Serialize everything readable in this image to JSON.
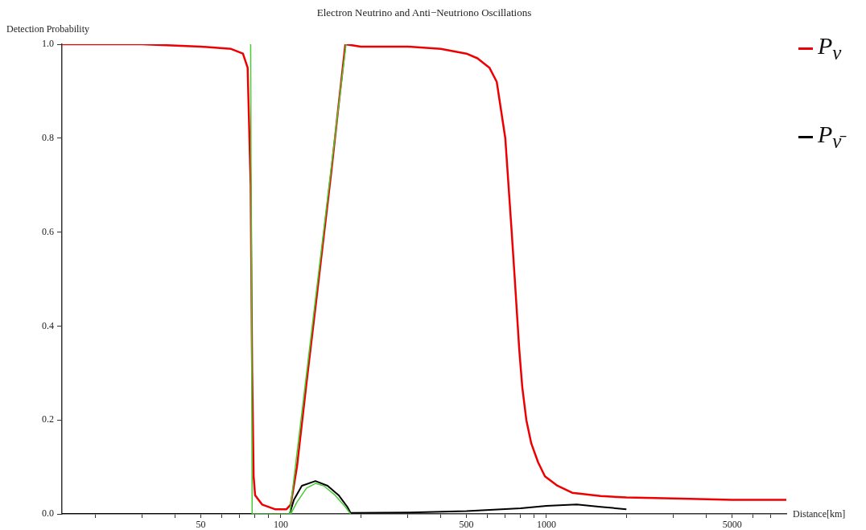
{
  "chart_data": {
    "type": "line",
    "title": "Electron Neutrino and Anti−Neutriono Oscillations",
    "xlabel": "Distance[km]",
    "ylabel": "Detection Probability",
    "log": "x",
    "legend": "right",
    "grid": false,
    "marker": "none",
    "line_style": "solid",
    "xlim": [
      15,
      8000
    ],
    "xticks": [
      {
        "value": 20,
        "label": null
      },
      {
        "value": 30,
        "label": null
      },
      {
        "value": 40,
        "label": null
      },
      50,
      {
        "value": 60,
        "label": null
      },
      {
        "value": 70,
        "label": null
      },
      {
        "value": 80,
        "label": null
      },
      {
        "value": 90,
        "label": null
      },
      100,
      {
        "value": 200,
        "label": null
      },
      {
        "value": 300,
        "label": null
      },
      {
        "value": 400,
        "label": null
      },
      500,
      {
        "value": 600,
        "label": null
      },
      {
        "value": 700,
        "label": null
      },
      {
        "value": 800,
        "label": null
      },
      {
        "value": 900,
        "label": null
      },
      1000,
      {
        "value": 2000,
        "label": null
      },
      {
        "value": 3000,
        "label": null
      },
      {
        "value": 4000,
        "label": null
      },
      5000,
      {
        "value": 6000,
        "label": null
      },
      {
        "value": 7000,
        "label": null
      }
    ],
    "ylim": [
      0,
      1
    ],
    "yticks": [
      {
        "value": 0,
        "label": "0.0"
      },
      {
        "value": 0.2,
        "label": "0.2"
      },
      {
        "value": 0.4,
        "label": "0.4"
      },
      {
        "value": 0.6,
        "label": "0.6"
      },
      {
        "value": 0.8,
        "label": "0.8"
      },
      {
        "value": 1,
        "label": "1.0"
      }
    ],
    "series": [
      {
        "name": "P$_{ν}$",
        "color": "#ee0000",
        "x": [
          15,
          30,
          50,
          65,
          72,
          75,
          77,
          78,
          79,
          80,
          85,
          95,
          105,
          109,
          115,
          125,
          135,
          145,
          155,
          165,
          175,
          200,
          300,
          400,
          500,
          550,
          610,
          650,
          700,
          740,
          760,
          790,
          811,
          840,
          877,
          930,
          987,
          1100,
          1250,
          1600,
          2000,
          3000,
          5000,
          8000
        ],
        "values": [
          1,
          1,
          0.995,
          0.99,
          0.98,
          0.95,
          0.7,
          0.3,
          0.08,
          0.04,
          0.02,
          0.01,
          0.01,
          0.02,
          0.1,
          0.28,
          0.44,
          0.59,
          0.73,
          0.87,
          1,
          0.995,
          0.995,
          0.99,
          0.98,
          0.97,
          0.95,
          0.92,
          0.8,
          0.6,
          0.5,
          0.35,
          0.27,
          0.2,
          0.15,
          0.11,
          0.08,
          0.06,
          0.045,
          0.038,
          0.035,
          0.033,
          0.03,
          0.03
        ]
      },
      {
        "name": "P$_{ν̄}$",
        "color": "#000000",
        "x": [
          15,
          108,
          112,
          120,
          135,
          150,
          165,
          178,
          183,
          300,
          500,
          800,
          1000,
          1300,
          1600,
          2000
        ],
        "values": [
          0,
          0,
          0.03,
          0.06,
          0.07,
          0.06,
          0.04,
          0.015,
          0.002,
          0.003,
          0.006,
          0.012,
          0.017,
          0.02,
          0.015,
          0.01
        ]
      },
      {
        "color": "#44cc33",
        "x": [
          77,
          78,
          108,
          176
        ],
        "values": [
          1,
          0,
          0,
          1
        ]
      },
      {
        "color": "#44cc33",
        "x": [
          109,
          115,
          125,
          135,
          145,
          160,
          175,
          183
        ],
        "values": [
          0,
          0.025,
          0.055,
          0.065,
          0.06,
          0.04,
          0.015,
          0
        ]
      }
    ]
  }
}
